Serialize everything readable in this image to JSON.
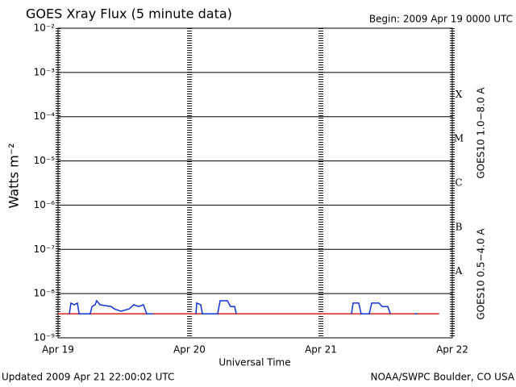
{
  "chart_data": {
    "type": "line",
    "title": "GOES Xray Flux (5 minute data)",
    "begin": "Begin:  2009 Apr 19 0000 UTC",
    "updated": "Updated 2009 Apr 21 22:00:02 UTC",
    "source": "NOAA/SWPC Boulder, CO USA",
    "xlabel": "Universal Time",
    "ylabel": "Watts m⁻²",
    "log_y": true,
    "grid": true,
    "classes": [
      "X",
      "M",
      "C",
      "B",
      "A"
    ],
    "xlim": [
      0,
      3
    ],
    "xticks": [
      {
        "value": 0,
        "label": "Apr 19"
      },
      {
        "value": 1,
        "label": "Apr 20"
      },
      {
        "value": 2,
        "label": "Apr 21"
      },
      {
        "value": 3,
        "label": "Apr 22"
      }
    ],
    "ylim": [
      1e-09,
      0.01
    ],
    "yticks": [
      {
        "value": 1e-09,
        "label": "10⁻⁹"
      },
      {
        "value": 1e-08,
        "label": "10⁻⁸"
      },
      {
        "value": 1e-07,
        "label": "10⁻⁷"
      },
      {
        "value": 1e-06,
        "label": "10⁻⁶"
      },
      {
        "value": 1e-05,
        "label": "10⁻⁵"
      },
      {
        "value": 0.0001,
        "label": "10⁻⁴"
      },
      {
        "value": 0.001,
        "label": "10⁻³"
      },
      {
        "value": 0.01,
        "label": "10⁻²"
      }
    ],
    "series": [
      {
        "name": "GOES10 1.0−8.0 A",
        "color": "#dd2222",
        "x": [
          0,
          2.9
        ],
        "values": [
          3.5e-09,
          3.5e-09
        ]
      },
      {
        "name": "GOES10 0.5−4.0 A",
        "color": "#1133dd",
        "x": [
          0.086,
          0.098,
          0.123,
          0.147,
          0.16,
          0.245,
          0.258,
          0.282,
          0.294,
          0.319,
          0.405,
          0.429,
          0.479,
          0.54,
          0.577,
          0.613,
          0.65,
          0.675,
          0.724,
          1.0,
          1.049,
          1.055,
          1.086,
          1.098,
          1.215,
          1.233,
          1.288,
          1.313,
          1.344,
          1.356,
          1.8,
          2.233,
          2.245,
          2.288,
          2.307,
          2.368,
          2.387,
          2.442,
          2.466,
          2.509,
          2.528,
          2.6,
          2.712,
          2.73
        ],
        "values": [
          3.5e-09,
          6.1e-09,
          5.6e-09,
          6.1e-09,
          3.5e-09,
          3.5e-09,
          5.1e-09,
          5.6e-09,
          6.9e-09,
          5.6e-09,
          5.1e-09,
          4.5e-09,
          4e-09,
          4.5e-09,
          5.6e-09,
          5.1e-09,
          5.6e-09,
          3.5e-09,
          3.5e-09,
          null,
          3.5e-09,
          6.1e-09,
          5.6e-09,
          3.5e-09,
          3.5e-09,
          6.9e-09,
          6.9e-09,
          5.1e-09,
          5.1e-09,
          3.5e-09,
          null,
          3.5e-09,
          6.1e-09,
          6.1e-09,
          3.5e-09,
          3.5e-09,
          6.1e-09,
          6.1e-09,
          5.1e-09,
          5.1e-09,
          3.5e-09,
          null,
          3.5e-09,
          3.5e-09
        ]
      }
    ]
  }
}
